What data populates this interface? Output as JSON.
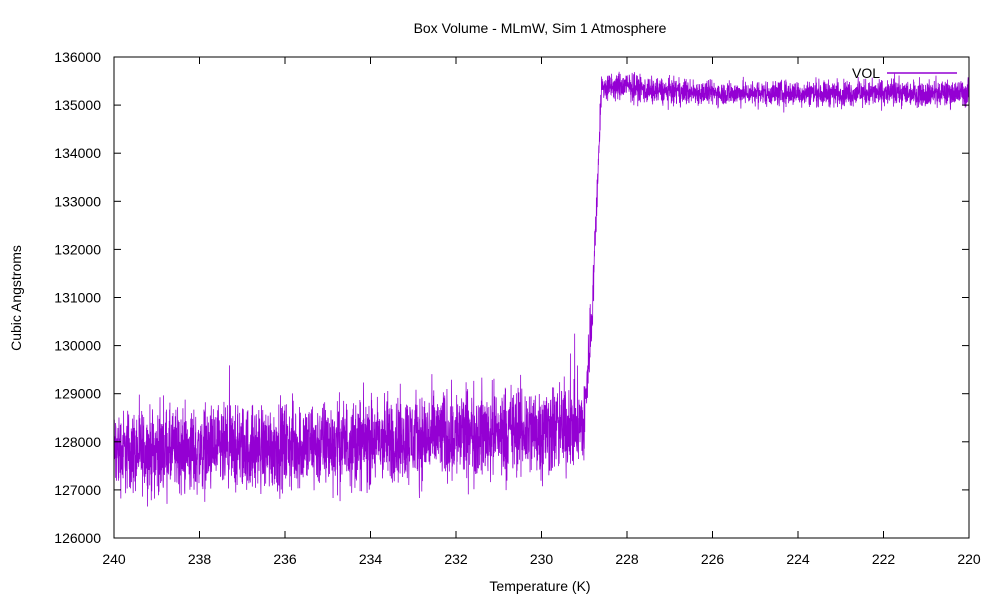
{
  "chart_data": {
    "type": "line",
    "title": "Box Volume - MLmW, Sim 1 Atmosphere",
    "xlabel": "Temperature (K)",
    "ylabel": "Cubic Angstroms",
    "xlim": [
      240,
      220
    ],
    "ylim": [
      126000,
      136000
    ],
    "x_reversed": true,
    "grid": false,
    "legend_position": "top-right",
    "x_ticks": [
      "240",
      "238",
      "236",
      "234",
      "232",
      "230",
      "228",
      "226",
      "224",
      "222",
      "220"
    ],
    "y_ticks": [
      "126000",
      "127000",
      "128000",
      "129000",
      "130000",
      "131000",
      "132000",
      "133000",
      "134000",
      "135000",
      "136000"
    ],
    "series": [
      {
        "name": "VOL",
        "color": "#9400d3",
        "mean_profile": [
          [
            240.0,
            127800
          ],
          [
            238.0,
            127800
          ],
          [
            236.0,
            127900
          ],
          [
            234.0,
            128000
          ],
          [
            232.0,
            128150
          ],
          [
            230.0,
            128250
          ],
          [
            229.0,
            128350
          ],
          [
            228.8,
            131000
          ],
          [
            228.6,
            135350
          ],
          [
            228.0,
            135400
          ],
          [
            227.5,
            135300
          ],
          [
            226.0,
            135250
          ],
          [
            224.0,
            135250
          ],
          [
            222.0,
            135250
          ],
          [
            220.0,
            135250
          ]
        ],
        "noise_band": [
          [
            240.0,
            1700
          ],
          [
            234.0,
            1800
          ],
          [
            230.0,
            1900
          ],
          [
            229.0,
            1800
          ],
          [
            228.6,
            600
          ],
          [
            226.0,
            500
          ],
          [
            220.0,
            550
          ]
        ]
      }
    ]
  }
}
